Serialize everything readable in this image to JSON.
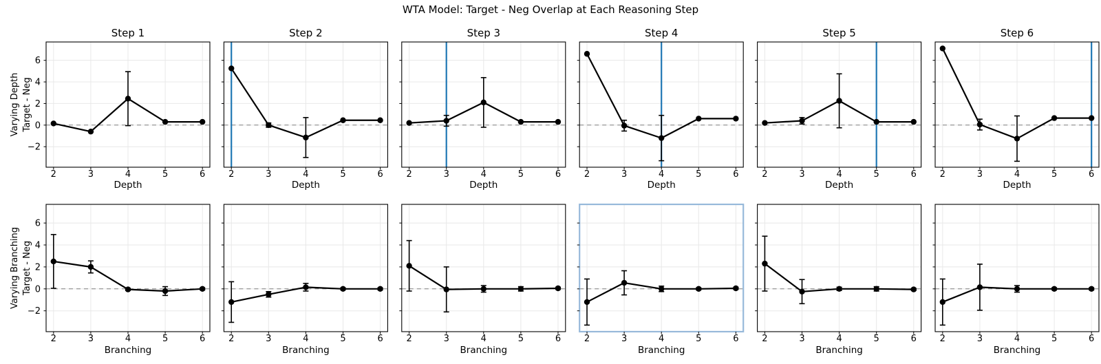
{
  "chart_data": {
    "type": "line",
    "title": "WTA Model: Target - Neg Overlap at Each Reasoning Step",
    "x": [
      2,
      3,
      4,
      5,
      6
    ],
    "xticks": [
      2,
      3,
      4,
      5,
      6
    ],
    "yticks": [
      -2,
      0,
      2,
      4,
      6
    ],
    "ylim": [
      -3.9,
      7.7
    ],
    "xlim": [
      1.8,
      6.2
    ],
    "grid": true,
    "zero_line": 0,
    "legend": "none",
    "colors": {
      "series": "#000000",
      "vline": "#1f77b4",
      "highlight": "#97b9da",
      "grid": "#e8e8e8",
      "zero_line": "#7f7f7f",
      "spine": "#000000"
    },
    "rows": [
      {
        "ylabel_line1": "Varying Depth",
        "ylabel_line2": "Target - Neg",
        "xlabel": "Depth",
        "panels": [
          {
            "title": "Step 1",
            "vline": null,
            "highlight": false,
            "y": [
              0.15,
              -0.6,
              2.45,
              0.3,
              0.3
            ],
            "yerr": [
              0,
              0,
              2.5,
              0,
              0
            ]
          },
          {
            "title": "Step 2",
            "vline": 2,
            "highlight": false,
            "y": [
              5.25,
              0.0,
              -1.15,
              0.45,
              0.45
            ],
            "yerr": [
              0,
              0.2,
              1.85,
              0,
              0
            ]
          },
          {
            "title": "Step 3",
            "vline": 3,
            "highlight": false,
            "y": [
              0.2,
              0.4,
              2.1,
              0.3,
              0.3
            ],
            "yerr": [
              0,
              0.5,
              2.3,
              0,
              0
            ]
          },
          {
            "title": "Step 4",
            "vline": 4,
            "highlight": false,
            "y": [
              6.6,
              -0.05,
              -1.2,
              0.6,
              0.6
            ],
            "yerr": [
              0,
              0.5,
              2.1,
              0,
              0
            ]
          },
          {
            "title": "Step 5",
            "vline": 5,
            "highlight": false,
            "y": [
              0.2,
              0.4,
              2.25,
              0.3,
              0.3
            ],
            "yerr": [
              0,
              0.3,
              2.5,
              0,
              0
            ]
          },
          {
            "title": "Step 6",
            "vline": 6,
            "highlight": false,
            "y": [
              7.1,
              0.05,
              -1.25,
              0.65,
              0.65
            ],
            "yerr": [
              0,
              0.5,
              2.1,
              0,
              0
            ]
          }
        ]
      },
      {
        "ylabel_line1": "Varying Branching",
        "ylabel_line2": "Target - Neg",
        "xlabel": "Branching",
        "panels": [
          {
            "title": null,
            "vline": null,
            "highlight": false,
            "y": [
              2.5,
              2.0,
              -0.05,
              -0.2,
              0.0
            ],
            "yerr": [
              2.45,
              0.55,
              0.1,
              0.4,
              0.1
            ]
          },
          {
            "title": null,
            "vline": null,
            "highlight": false,
            "y": [
              -1.2,
              -0.5,
              0.15,
              0.0,
              0.0
            ],
            "yerr": [
              1.85,
              0.25,
              0.35,
              0.1,
              0.1
            ]
          },
          {
            "title": null,
            "vline": null,
            "highlight": false,
            "y": [
              2.1,
              -0.05,
              0.0,
              0.0,
              0.05
            ],
            "yerr": [
              2.3,
              2.05,
              0.3,
              0.2,
              0.1
            ]
          },
          {
            "title": null,
            "vline": null,
            "highlight": true,
            "y": [
              -1.2,
              0.55,
              0.0,
              0.0,
              0.05
            ],
            "yerr": [
              2.1,
              1.1,
              0.25,
              0.1,
              0.1
            ]
          },
          {
            "title": null,
            "vline": null,
            "highlight": false,
            "y": [
              2.3,
              -0.25,
              0.0,
              0.0,
              -0.05
            ],
            "yerr": [
              2.5,
              1.1,
              0.15,
              0.2,
              0.1
            ]
          },
          {
            "title": null,
            "vline": null,
            "highlight": false,
            "y": [
              -1.2,
              0.15,
              0.0,
              0.0,
              0.0
            ],
            "yerr": [
              2.1,
              2.1,
              0.3,
              0.1,
              0.1
            ]
          }
        ]
      }
    ]
  }
}
